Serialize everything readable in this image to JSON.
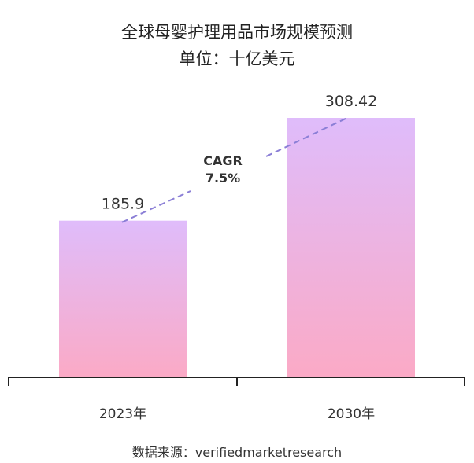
{
  "chart_data": {
    "type": "bar",
    "title": "全球母婴护理用品市场规模预测",
    "subtitle": "单位：十亿美元",
    "categories": [
      "2023年",
      "2030年"
    ],
    "values": [
      185.9,
      308.42
    ],
    "value_labels": [
      "185.9",
      "308.42"
    ],
    "annotation": {
      "line1": "CAGR",
      "line2": "7.5%"
    },
    "ylim": [
      0,
      308.42
    ],
    "grid": false,
    "colors": {
      "bar_top": "#dfbcfb",
      "bar_bottom": "#fbaac6",
      "cagr_line": "#8b7fd6",
      "axis": "#222222"
    }
  },
  "source": "数据来源：verifiedmarketresearch"
}
